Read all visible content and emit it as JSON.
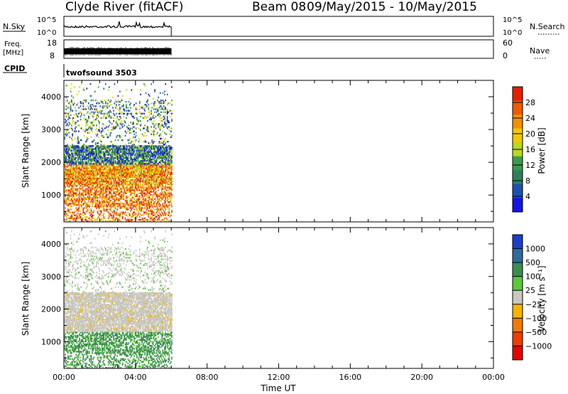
{
  "header": {
    "station": "Clyde River (fitACF)",
    "beam": "Beam 08",
    "daterange": "09/May/2015 - 10/May/2015"
  },
  "top_panels": {
    "nsky_label": "N.Sky",
    "nsky_ticks": [
      "10^5",
      "10^0"
    ],
    "nsearch_label": "N.Search",
    "freq_label_1": "Freq.",
    "freq_label_2": "[MHz]",
    "freq_ticks": [
      "18",
      "8"
    ],
    "nave_ticks": [
      "60",
      "0"
    ],
    "nave_label": "Nave",
    "cpid_label": "CPID",
    "cpid_value": "twofsound 3503"
  },
  "colors": {
    "power_scale": [
      "#1414e6",
      "#1e50b4",
      "#2f7f5a",
      "#3c9a4c",
      "#b8d820",
      "#f5c800",
      "#f59000",
      "#f05a00",
      "#e61e00"
    ],
    "velocity_scale": [
      "#e60000",
      "#f03c00",
      "#f57800",
      "#f5b400",
      "#c8c8c0",
      "#5ac83c",
      "#3c8c50",
      "#2f6aa0",
      "#1e3ccc"
    ]
  },
  "chart_data": [
    {
      "type": "heatmap",
      "title": "Power",
      "ylabel": "Slant Range [km]",
      "xlabel": "Time UT",
      "x_ticks": [
        "00:00",
        "04:00",
        "08:00",
        "12:00",
        "16:00",
        "20:00",
        "00:00"
      ],
      "xlim_hours": [
        0,
        24
      ],
      "data_extent_hours": [
        0,
        6
      ],
      "y_ticks": [
        1000,
        2000,
        3000,
        4000
      ],
      "ylim": [
        180,
        4500
      ],
      "colorbar_label": "Power [dB]",
      "colorbar_ticks": [
        4,
        8,
        12,
        16,
        20,
        24,
        28
      ],
      "colorbar_range": [
        0,
        32
      ]
    },
    {
      "type": "heatmap",
      "title": "Velocity",
      "ylabel": "Slant Range [km]",
      "xlabel": "Time UT",
      "x_ticks": [
        "00:00",
        "04:00",
        "08:00",
        "12:00",
        "16:00",
        "20:00",
        "00:00"
      ],
      "xlim_hours": [
        0,
        24
      ],
      "data_extent_hours": [
        0,
        6
      ],
      "y_ticks": [
        1000,
        2000,
        3000,
        4000
      ],
      "ylim": [
        180,
        4500
      ],
      "colorbar_label": "Velocity [m s⁻¹]",
      "colorbar_ticks": [
        "1000",
        "500",
        "100",
        "25",
        "−25",
        "−100",
        "−500",
        "−1000"
      ]
    }
  ],
  "axis": {
    "time_label": "Time UT"
  }
}
